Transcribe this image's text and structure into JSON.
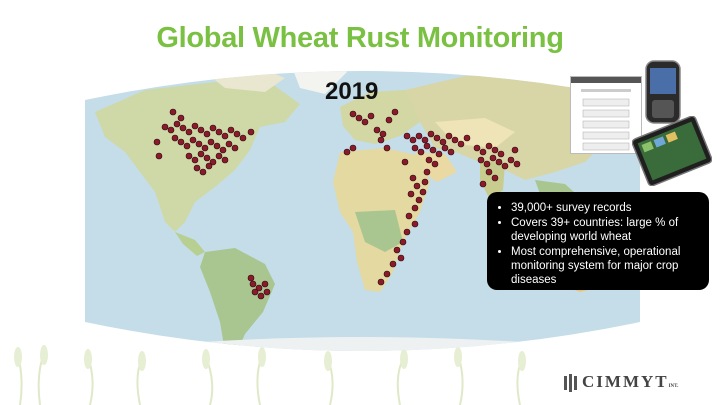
{
  "slide": {
    "title": "Global Wheat Rust Monitoring",
    "year": "2019",
    "bullets": [
      "39,000+ survey records",
      "Covers 39+ countries: large % of developing world wheat",
      "Most comprehensive, operational monitoring system for major crop diseases"
    ],
    "logo_text": "CIMMYT",
    "logo_mark": "INT."
  },
  "colors": {
    "title": "#7ac143",
    "ocean": "#c4dde8",
    "land": "#d8d6a6",
    "forest": "#a9c690",
    "desert": "#efe3b8",
    "survey_point": "#8b1a2a",
    "infobox": "#000000"
  },
  "icons": [
    "phone-icon",
    "tablet-icon",
    "wheat-plant-icon",
    "cimmyt-logo-icon"
  ]
}
